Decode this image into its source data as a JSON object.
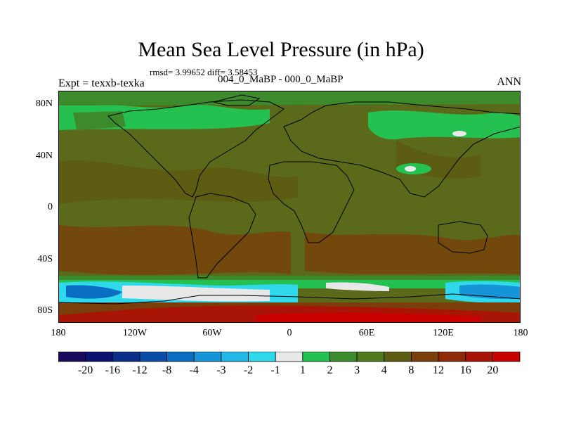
{
  "title": "Mean Sea Level Pressure (in hPa)",
  "stats": "rmsd= 3.99652 diff= 3.58453",
  "experiment": "Expt = texxb-texka",
  "period": "004_0_MaBP - 000_0_MaBP",
  "season": "ANN",
  "axes": {
    "y_ticks": [
      "80N",
      "40N",
      "0",
      "40S",
      "80S"
    ],
    "x_ticks": [
      "180",
      "120W",
      "60W",
      "0",
      "60E",
      "120E",
      "180"
    ]
  },
  "colorbar": {
    "labels": [
      "-20",
      "-16",
      "-12",
      "-8",
      "-4",
      "-3",
      "-2",
      "-1",
      "1",
      "2",
      "3",
      "4",
      "8",
      "12",
      "16",
      "20"
    ],
    "colors": [
      "#1a0a5e",
      "#0a1470",
      "#0a2e8a",
      "#0a4ca6",
      "#0a6ec2",
      "#1594d8",
      "#22b8e8",
      "#30d8ec",
      "#e8e8e8",
      "#24c050",
      "#3c8a2c",
      "#4f7a20",
      "#5c5c12",
      "#7a3e0a",
      "#8e2a08",
      "#a81406",
      "#c80000"
    ]
  },
  "colors": {
    "background_land": "#5b6a1a",
    "coastline": "#000000"
  }
}
